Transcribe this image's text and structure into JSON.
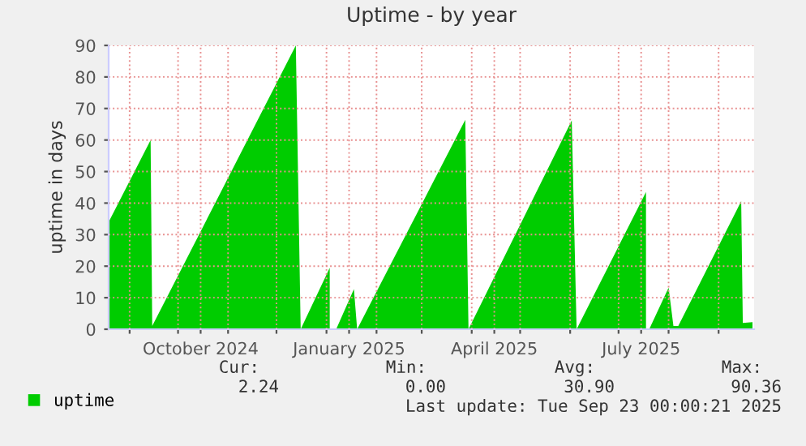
{
  "chart_data": {
    "type": "area",
    "title": "Uptime - by year",
    "ylabel": "uptime in days",
    "x": [
      "2024-08-19",
      "2024-09-14",
      "2024-09-15",
      "2024-12-13",
      "2024-12-16",
      "2025-01-03",
      "2025-01-05",
      "2025-01-07",
      "2025-01-18",
      "2025-01-20",
      "2025-03-28",
      "2025-03-30",
      "2025-06-02",
      "2025-06-05",
      "2025-07-18",
      "2025-07-19",
      "2025-07-20",
      "2025-08-01",
      "2025-08-04",
      "2025-08-07",
      "2025-09-15",
      "2025-09-16",
      "2025-09-22"
    ],
    "series": [
      {
        "name": "uptime",
        "color": "#00cc00",
        "values": [
          34,
          60,
          1,
          90,
          0,
          19.5,
          null,
          0,
          12.7,
          0,
          66.4,
          0,
          66.2,
          0,
          43.5,
          null,
          0,
          13.2,
          1,
          1,
          40.6,
          2,
          2.24
        ]
      }
    ],
    "xlim": [
      "2024-08-19",
      "2025-09-23"
    ],
    "xticks": [
      {
        "value": "2024-09-01",
        "label": null
      },
      {
        "value": "2024-10-01",
        "label": null
      },
      {
        "value": "2024-10-15",
        "label": "October 2024"
      },
      {
        "value": "2024-11-01",
        "label": null
      },
      {
        "value": "2024-12-01",
        "label": null
      },
      {
        "value": "2025-01-01",
        "label": null
      },
      {
        "value": "2025-01-15",
        "label": "January 2025"
      },
      {
        "value": "2025-02-01",
        "label": null
      },
      {
        "value": "2025-03-01",
        "label": null
      },
      {
        "value": "2025-04-01",
        "label": null
      },
      {
        "value": "2025-04-15",
        "label": "April 2025"
      },
      {
        "value": "2025-05-01",
        "label": null
      },
      {
        "value": "2025-06-01",
        "label": null
      },
      {
        "value": "2025-07-01",
        "label": null
      },
      {
        "value": "2025-07-15",
        "label": "July 2025"
      },
      {
        "value": "2025-08-01",
        "label": null
      },
      {
        "value": "2025-09-01",
        "label": null
      }
    ],
    "ylim": [
      0,
      90
    ],
    "yticks": [
      0,
      10,
      20,
      30,
      40,
      50,
      60,
      70,
      80,
      90
    ],
    "grid": true,
    "legend": "bottom left",
    "annotations": [
      "Cur:",
      "Min:",
      "Avg:",
      "Max:",
      "2.24",
      "0.00",
      "30.90",
      "90.36",
      "Last update: Tue Sep 23 00:00:21 2025"
    ]
  }
}
